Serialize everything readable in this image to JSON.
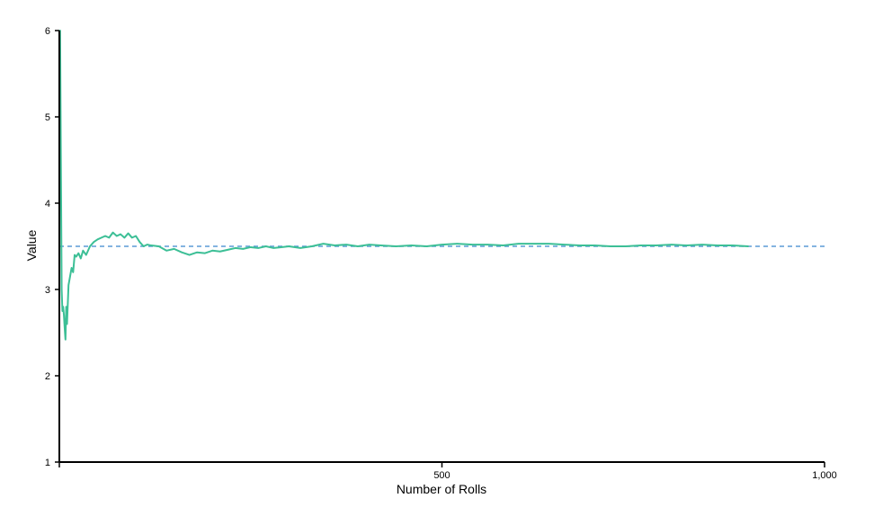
{
  "chart_data": {
    "type": "line",
    "title": "",
    "xlabel": "Number of Rolls",
    "ylabel": "Value",
    "xlim": [
      0,
      1000
    ],
    "ylim": [
      1,
      6
    ],
    "x_ticks": [
      0,
      500,
      1000
    ],
    "x_tick_labels": [
      "",
      "500",
      "1,000"
    ],
    "y_ticks": [
      1,
      2,
      3,
      4,
      5,
      6
    ],
    "y_tick_labels": [
      "1",
      "2",
      "3",
      "4",
      "5",
      "6"
    ],
    "grid": false,
    "reference_line": {
      "y": 3.5,
      "style": "dashed",
      "color": "#5b9bd5"
    },
    "series": [
      {
        "color": "#3cbf96",
        "x": [
          1,
          2,
          3,
          4,
          5,
          6,
          7,
          8,
          9,
          10,
          12,
          14,
          16,
          18,
          20,
          22,
          25,
          28,
          31,
          35,
          40,
          45,
          50,
          55,
          60,
          65,
          70,
          75,
          80,
          85,
          90,
          95,
          100,
          105,
          110,
          115,
          120,
          130,
          140,
          150,
          160,
          170,
          180,
          190,
          200,
          210,
          220,
          230,
          240,
          250,
          260,
          270,
          280,
          290,
          300,
          315,
          330,
          345,
          360,
          375,
          390,
          405,
          420,
          440,
          460,
          480,
          500,
          520,
          540,
          560,
          580,
          600,
          620,
          640,
          660,
          680,
          700,
          720,
          740,
          760,
          780,
          800,
          820,
          840,
          860,
          880,
          900
        ],
        "values": [
          6.0,
          4.5,
          3.0,
          2.75,
          2.8,
          2.7,
          2.55,
          2.42,
          2.8,
          2.6,
          3.05,
          3.15,
          3.25,
          3.2,
          3.4,
          3.38,
          3.42,
          3.36,
          3.45,
          3.4,
          3.5,
          3.55,
          3.58,
          3.6,
          3.62,
          3.6,
          3.66,
          3.62,
          3.64,
          3.6,
          3.65,
          3.6,
          3.62,
          3.55,
          3.5,
          3.52,
          3.51,
          3.5,
          3.45,
          3.47,
          3.43,
          3.4,
          3.43,
          3.42,
          3.45,
          3.44,
          3.46,
          3.48,
          3.47,
          3.49,
          3.48,
          3.5,
          3.48,
          3.49,
          3.5,
          3.48,
          3.5,
          3.53,
          3.51,
          3.52,
          3.5,
          3.52,
          3.51,
          3.5,
          3.51,
          3.5,
          3.52,
          3.53,
          3.52,
          3.52,
          3.51,
          3.53,
          3.53,
          3.53,
          3.52,
          3.51,
          3.51,
          3.5,
          3.5,
          3.51,
          3.51,
          3.52,
          3.51,
          3.52,
          3.51,
          3.51,
          3.5
        ]
      }
    ]
  }
}
